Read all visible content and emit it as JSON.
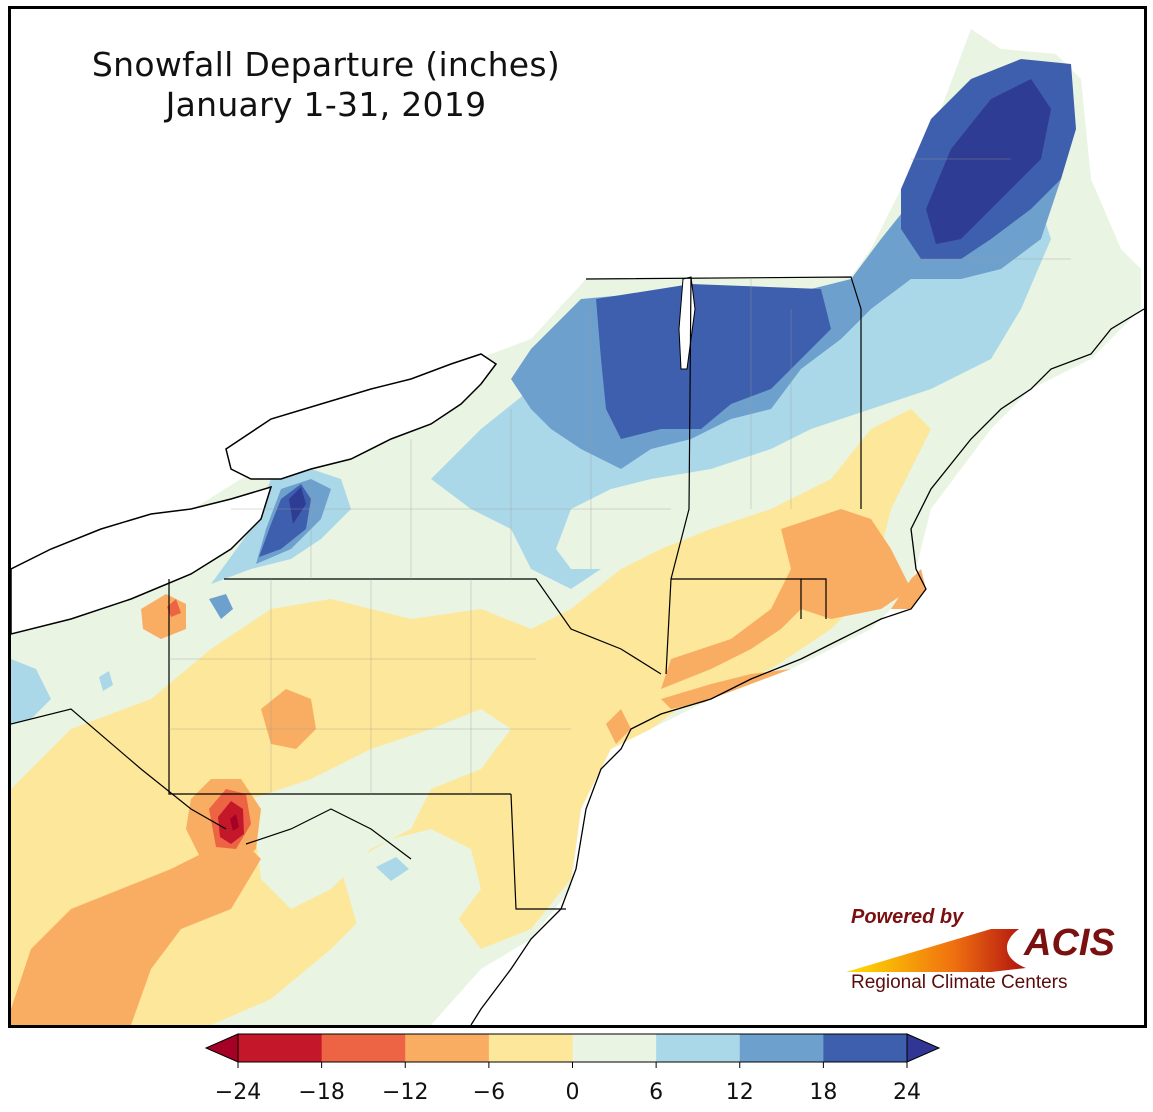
{
  "title": {
    "line1": "Snowfall Departure (inches)",
    "line2": "January 1-31, 2019"
  },
  "legend": {
    "ticks": [
      "−24",
      "−18",
      "−12",
      "−6",
      "0",
      "6",
      "12",
      "18",
      "24"
    ],
    "bins": [
      {
        "range": [
          -24,
          -18
        ],
        "color": "#c4182a"
      },
      {
        "range": [
          -18,
          -12
        ],
        "color": "#ec6443"
      },
      {
        "range": [
          -12,
          -6
        ],
        "color": "#f9ad62"
      },
      {
        "range": [
          -6,
          0
        ],
        "color": "#fde79a"
      },
      {
        "range": [
          0,
          6
        ],
        "color": "#e9f4e3"
      },
      {
        "range": [
          6,
          12
        ],
        "color": "#aad8e9"
      },
      {
        "range": [
          12,
          18
        ],
        "color": "#6ea0cd"
      },
      {
        "range": [
          18,
          24
        ],
        "color": "#3e5fad"
      }
    ],
    "under_color": "#a50026",
    "over_color": "#313695"
  },
  "colors": {
    "deep_blue": "#2f3c93",
    "water": "#ffffff",
    "border": "#000000",
    "county": "#9a9a9a"
  },
  "logo": {
    "powered_by": "Powered by",
    "acis": "ACIS",
    "subtitle": "Regional Climate Centers"
  }
}
